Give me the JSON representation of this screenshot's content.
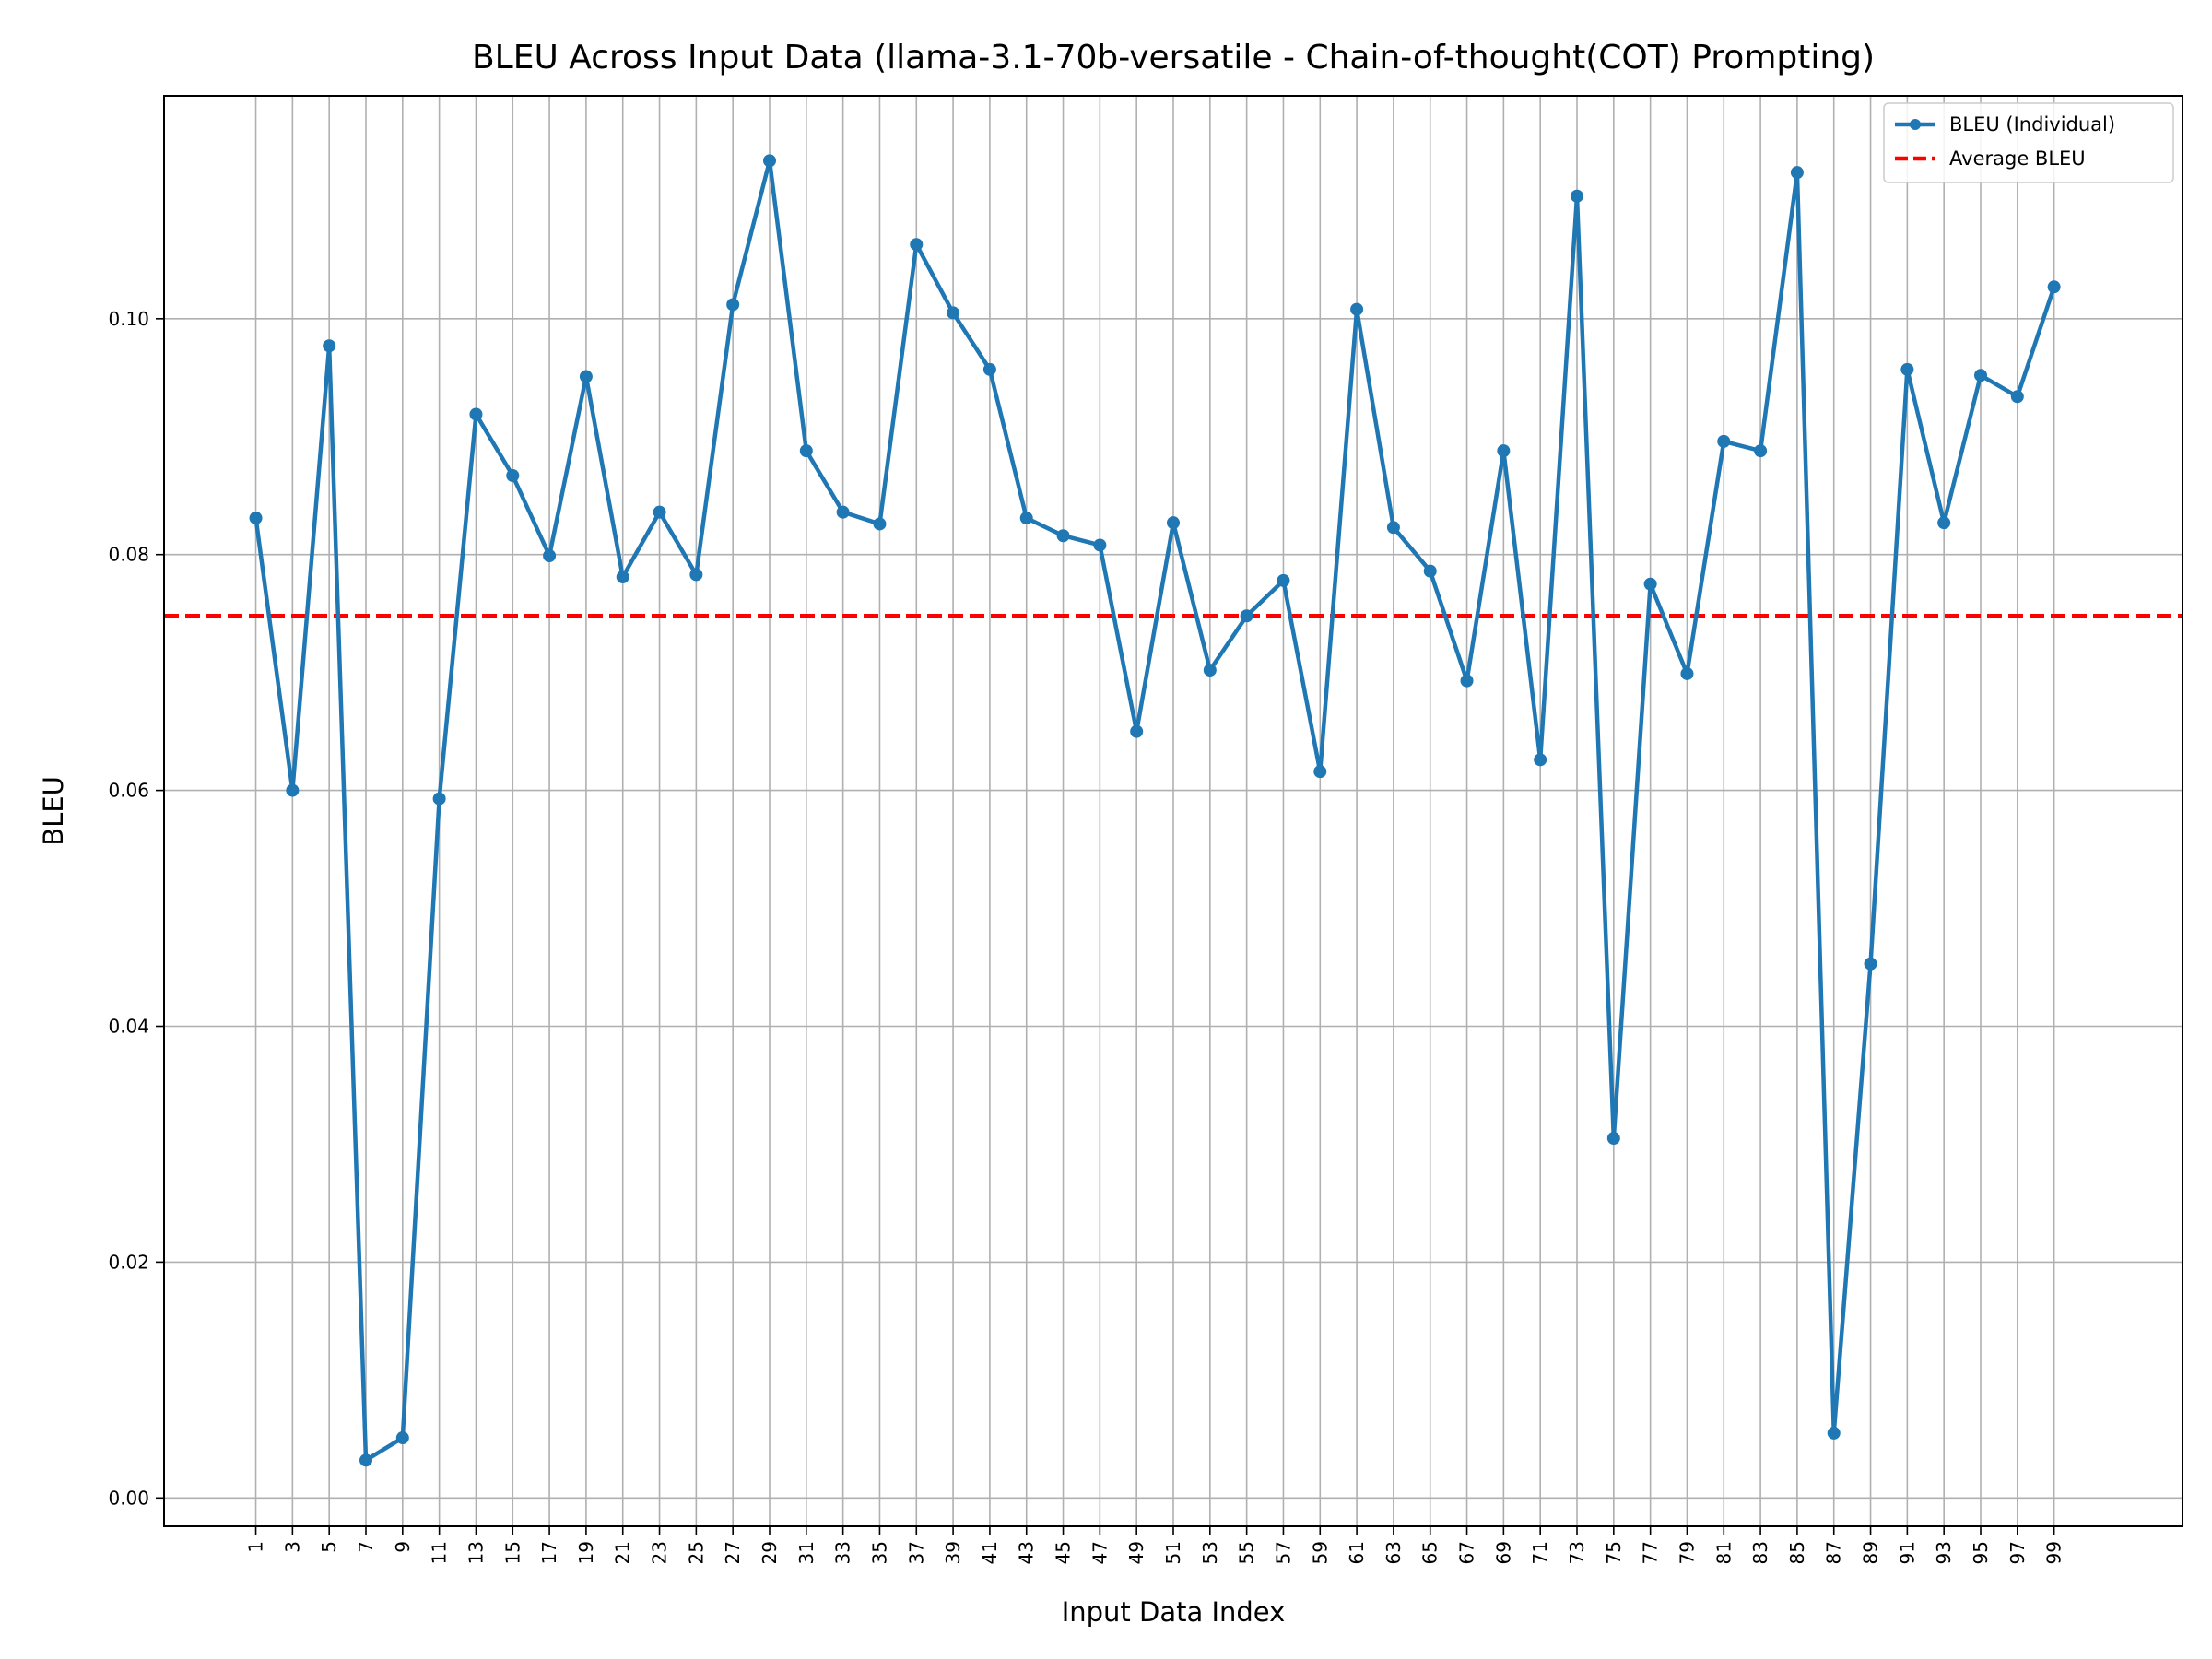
{
  "chart_data": {
    "type": "line",
    "title": "BLEU Across Input Data (llama-3.1-70b-versatile - Chain-of-thought(COT) Prompting)",
    "xlabel": "Input Data Index",
    "ylabel": "BLEU",
    "x": [
      1,
      3,
      5,
      7,
      9,
      11,
      13,
      15,
      17,
      19,
      21,
      23,
      25,
      27,
      29,
      31,
      33,
      35,
      37,
      39,
      41,
      43,
      45,
      47,
      49,
      51,
      53,
      55,
      57,
      59,
      61,
      63,
      65,
      67,
      69,
      71,
      73,
      75,
      77,
      79,
      81,
      83,
      85,
      87,
      89,
      91,
      93,
      95,
      97,
      99
    ],
    "x_ticks": [
      "1",
      "3",
      "5",
      "7",
      "9",
      "11",
      "13",
      "15",
      "17",
      "19",
      "21",
      "23",
      "25",
      "27",
      "29",
      "31",
      "33",
      "35",
      "37",
      "39",
      "41",
      "43",
      "45",
      "47",
      "49",
      "51",
      "53",
      "55",
      "57",
      "59",
      "61",
      "63",
      "65",
      "67",
      "69",
      "71",
      "73",
      "75",
      "77",
      "79",
      "81",
      "83",
      "85",
      "87",
      "89",
      "91",
      "93",
      "95",
      "97",
      "99"
    ],
    "y_ticks": [
      "0.00",
      "0.02",
      "0.04",
      "0.06",
      "0.08",
      "0.10"
    ],
    "y_tick_values": [
      0.0,
      0.02,
      0.04,
      0.06,
      0.08,
      0.1
    ],
    "xlim": [
      -4,
      106
    ],
    "ylim": [
      -0.0024,
      0.1189
    ],
    "grid": true,
    "legend_position": "top-right",
    "series": [
      {
        "name": "BLEU (Individual)",
        "color": "#1f77b4",
        "style": "solid-with-markers",
        "values": [
          0.0831,
          0.06,
          0.0977,
          0.0032,
          0.0051,
          0.0593,
          0.0919,
          0.0867,
          0.0799,
          0.0951,
          0.0781,
          0.0836,
          0.0783,
          0.1012,
          0.1134,
          0.0888,
          0.0836,
          0.0826,
          0.1063,
          0.1005,
          0.0957,
          0.0831,
          0.0816,
          0.0808,
          0.065,
          0.0827,
          0.0702,
          0.0748,
          0.0778,
          0.0616,
          0.1008,
          0.0823,
          0.0786,
          0.0693,
          0.0888,
          0.0626,
          0.1104,
          0.0305,
          0.0775,
          0.0699,
          0.0896,
          0.0888,
          0.1124,
          0.0055,
          0.0453,
          0.0957,
          0.0827,
          0.0952,
          0.0934,
          0.1027
        ]
      },
      {
        "name": "Average BLEU",
        "color": "#ff0000",
        "style": "dashed",
        "value": 0.0748
      }
    ]
  }
}
